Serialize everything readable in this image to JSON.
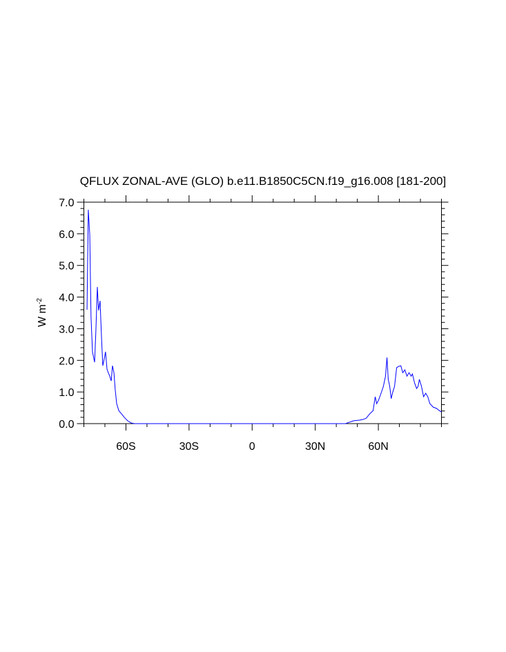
{
  "chart_data": {
    "type": "line",
    "title": "QFLUX ZONAL-AVE (GLO) b.e11.B1850C5CN.f19_g16.008 [181-200]",
    "ylabel": "W m",
    "ylabel_superscript": "-2",
    "x": [
      -78.5,
      -77.9,
      -77.2,
      -76.6,
      -75.9,
      -74.9,
      -74.3,
      -73.6,
      -73.0,
      -72.3,
      -71.6,
      -71.0,
      -70.3,
      -69.7,
      -69.0,
      -68.4,
      -67.7,
      -67.0,
      -66.4,
      -65.7,
      -65.1,
      -64.4,
      -63.4,
      -62.1,
      -60.8,
      -59.2,
      -57.5,
      -55.9,
      -50,
      0,
      40,
      44.4,
      46.0,
      48.3,
      50.9,
      52.6,
      54.2,
      55.9,
      57.5,
      58.5,
      59.2,
      60.1,
      61.5,
      62.4,
      63.4,
      64.1,
      64.7,
      65.4,
      66.1,
      66.7,
      67.7,
      68.7,
      69.7,
      70.7,
      71.6,
      72.6,
      73.6,
      74.6,
      75.6,
      76.2,
      77.2,
      78.2,
      78.9,
      79.5,
      80.5,
      81.5,
      82.5,
      83.5,
      84.5,
      86.1,
      87.7,
      89.0,
      90
    ],
    "series": [
      {
        "color": "#0000ff",
        "values": [
          3.6,
          6.76,
          5.97,
          3.36,
          2.27,
          1.94,
          2.92,
          4.32,
          3.58,
          3.88,
          2.7,
          1.83,
          2.05,
          2.27,
          1.72,
          1.61,
          1.5,
          1.35,
          1.83,
          1.61,
          1.07,
          0.63,
          0.41,
          0.31,
          0.2,
          0.09,
          0.02,
          0,
          0,
          0,
          0,
          0,
          0.04,
          0.09,
          0.11,
          0.13,
          0.17,
          0.31,
          0.41,
          0.85,
          0.63,
          0.74,
          1.0,
          1.18,
          1.5,
          2.09,
          1.4,
          1.18,
          0.79,
          0.96,
          1.18,
          1.77,
          1.81,
          1.83,
          1.61,
          1.7,
          1.5,
          1.61,
          1.5,
          1.57,
          1.29,
          1.11,
          1.18,
          1.4,
          1.18,
          0.85,
          0.96,
          0.85,
          0.63,
          0.52,
          0.48,
          0.41,
          0.37
        ]
      }
    ],
    "xlim": [
      -80,
      90
    ],
    "ylim": [
      0,
      7
    ],
    "xticks": [
      {
        "value": -60,
        "label": "60S"
      },
      {
        "value": -30,
        "label": "30S"
      },
      0,
      {
        "value": 30,
        "label": "30N"
      },
      {
        "value": 60,
        "label": "60N"
      }
    ],
    "xminorticks": [
      -80,
      -70,
      -50,
      -40,
      -20,
      -10,
      10,
      20,
      40,
      50,
      70,
      80,
      90
    ],
    "yticks": [
      {
        "value": 0,
        "label": "0.0"
      },
      {
        "value": 1,
        "label": "1.0"
      },
      {
        "value": 2,
        "label": "2.0"
      },
      {
        "value": 3,
        "label": "3.0"
      },
      {
        "value": 4,
        "label": "4.0"
      },
      {
        "value": 5,
        "label": "5.0"
      },
      {
        "value": 6,
        "label": "6.0"
      },
      {
        "value": 7,
        "label": "7.0"
      }
    ],
    "yminorticks": [
      0.2,
      0.4,
      0.6,
      0.8,
      1.2,
      1.4,
      1.6,
      1.8,
      2.2,
      2.4,
      2.6,
      2.8,
      3.2,
      3.4,
      3.6,
      3.8,
      4.2,
      4.4,
      4.6,
      4.8,
      5.2,
      5.4,
      5.6,
      5.8,
      6.2,
      6.4,
      6.6,
      6.8
    ]
  }
}
